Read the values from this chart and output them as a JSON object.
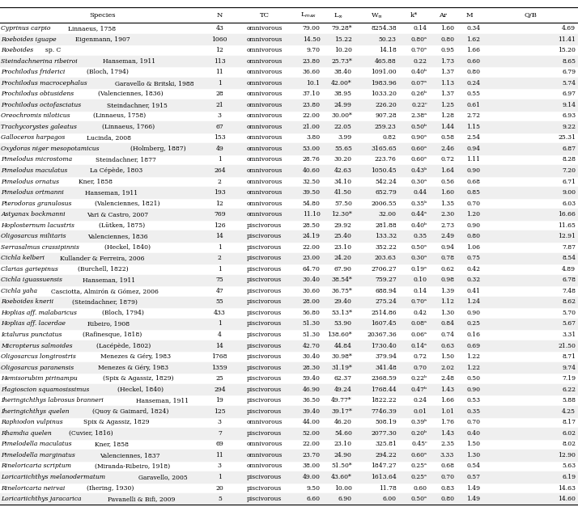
{
  "rows": [
    [
      "Cyprinus carpio",
      "Linnaeus, 1758",
      "43",
      "omnivorous",
      "79.00",
      "79.28*",
      "8254.38",
      "0.14",
      "1.60",
      "0.34",
      "4.69"
    ],
    [
      "Roeboides iguape",
      "Eigenmann, 1907",
      "1060",
      "omnivorous",
      "14.50",
      "15.22",
      "50.23",
      "0.80ᵃ",
      "0.80",
      "1.62",
      "11.41"
    ],
    [
      "Roeboides",
      "sp. C",
      "12",
      "omnivorous",
      "9.70",
      "10.20",
      "14.18",
      "0.70ᵃ",
      "0.95",
      "1.66",
      "15.20"
    ],
    [
      "Steindachnerina ribeiroi",
      "Hanseman, 1911",
      "113",
      "omnivorous",
      "23.80",
      "25.73*",
      "465.88",
      "0.22",
      "1.73",
      "0.60",
      "8.65"
    ],
    [
      "Prochilodus friderici",
      "(Bloch, 1794)",
      "11",
      "omnivorous",
      "36.60",
      "38.40",
      "1091.00",
      "0.40ᵇ",
      "1.37",
      "0.80",
      "6.79"
    ],
    [
      "Prochilodus macrocephalus",
      "Garavello & Britski, 1988",
      "1",
      "omnivorous",
      "10.1",
      "42.00*",
      "1983.96",
      "0.07ᵃ",
      "1.13",
      "0.24",
      "5.74"
    ],
    [
      "Prochilodus obtusidens",
      "(Valenciennes, 1836)",
      "28",
      "omnivorous",
      "37.10",
      "38.95",
      "1033.20",
      "0.26ᵇ",
      "1.37",
      "0.55",
      "6.97"
    ],
    [
      "Prochilodus octofasciatus",
      "Steindachner, 1915",
      "21",
      "omnivorous",
      "23.80",
      "24.99",
      "226.20",
      "0.22ᶜ",
      "1.25",
      "0.61",
      "9.14"
    ],
    [
      "Oreochromis niloticus",
      "(Linnaeus, 1758)",
      "3",
      "omnivorous",
      "22.00",
      "30.00*",
      "907.28",
      "2.38ᵃ",
      "1.28",
      "2.72",
      "6.93"
    ],
    [
      "Trachycorystes galeatus",
      "(Linnaeus, 1766)",
      "67",
      "omnivorous",
      "21.00",
      "22.05",
      "259.23",
      "0.50ᵇ",
      "1.44",
      "1.15",
      "9.22"
    ],
    [
      "Galloceros harpagos",
      "Lucinda, 2008",
      "153",
      "omnivorous",
      "3.80",
      "3.99",
      "0.82",
      "0.90ᵃ",
      "0.58",
      "2.54",
      "25.31"
    ],
    [
      "Oxydoras niger mesopotamicus",
      "(Holmberg, 1887)",
      "49",
      "omnivorous",
      "53.00",
      "55.65",
      "3165.65",
      "0.60ᵃ",
      "2.46",
      "0.94",
      "6.87"
    ],
    [
      "Pimelodus microstoma",
      "Steindachner, 1877",
      "1",
      "omnivorous",
      "28.76",
      "30.20",
      "223.76",
      "0.60ᵃ",
      "0.72",
      "1.11",
      "8.28"
    ],
    [
      "Pimelodus maculatus",
      "La Cépède, 1803",
      "264",
      "omnivorous",
      "40.60",
      "42.63",
      "1050.45",
      "0.43ᵇ",
      "1.64",
      "0.90",
      "7.20"
    ],
    [
      "Pimelodus ornatus",
      "Kner, 1858",
      "2",
      "omnivorous",
      "32.50",
      "34.10",
      "542.24",
      "0.30ᵃ",
      "0.56",
      "0.68",
      "6.71"
    ],
    [
      "Pimelodus ortmanni",
      "Hanseman, 1911",
      "193",
      "omnivorous",
      "39.50",
      "41.50",
      "652.79",
      "0.44",
      "1.60",
      "0.85",
      "9.00"
    ],
    [
      "Pterodoras granulosus",
      "(Valenciennes, 1821)",
      "12",
      "omnivorous",
      "54.80",
      "57.50",
      "2006.55",
      "0.35ᵇ",
      "1.35",
      "0.70",
      "6.03"
    ],
    [
      "Astyanax bockmanni",
      "Vari & Castro, 2007",
      "769",
      "omnivorous",
      "11.10",
      "12.30*",
      "32.00",
      "0.44ᵃ",
      "2.30",
      "1.20",
      "16.66"
    ],
    [
      "Hoplosternum lacustris",
      "(Lütken, 1875)",
      "126",
      "piscivorous",
      "28.50",
      "29.92",
      "281.88",
      "0.40ᵇ",
      "2.73",
      "0.90",
      "11.65"
    ],
    [
      "Oligosarcus militaris",
      "Valenciennes, 1836",
      "14",
      "piscivorous",
      "24.19",
      "25.40",
      "133.32",
      "0.35",
      "2.49",
      "0.80",
      "12.91"
    ],
    [
      "Serrasalmus crassipinnis",
      "(Heckel, 1840)",
      "1",
      "piscivorous",
      "22.00",
      "23.10",
      "352.22",
      "0.50ᵃ",
      "0.94",
      "1.06",
      "7.87"
    ],
    [
      "Cichla kelberi",
      "Kullander & Ferreira, 2006",
      "2",
      "piscivorous",
      "23.00",
      "24.20",
      "203.63",
      "0.30ᵃ",
      "0.78",
      "0.75",
      "8.54"
    ],
    [
      "Clarias gariepinus",
      "(Burchell, 1822)",
      "1",
      "piscivorous",
      "64.70",
      "67.90",
      "2706.27",
      "0.19ᵃ",
      "0.62",
      "0.42",
      "4.89"
    ],
    [
      "Cichla iguassuensis",
      "Hanseman, 1911",
      "75",
      "piscivorous",
      "30.40",
      "38.54*",
      "759.27",
      "0.10",
      "0.98",
      "0.32",
      "6.78"
    ],
    [
      "Cichla yaha",
      "Casciotta, Almirón & Gómez, 2006",
      "47",
      "piscivorous",
      "30.60",
      "36.75*",
      "688.94",
      "0.14",
      "1.39",
      "0.41",
      "7.48"
    ],
    [
      "Roeboides knerii",
      "(Steindachner, 1879)",
      "55",
      "piscivorous",
      "28.00",
      "29.40",
      "275.24",
      "0.70ᵃ",
      "1.12",
      "1.24",
      "8.62"
    ],
    [
      "Hoplias aff. malabaricus",
      "(Bloch, 1794)",
      "433",
      "piscivorous",
      "56.80",
      "53.13*",
      "2514.86",
      "0.42",
      "1.30",
      "0.90",
      "5.70"
    ],
    [
      "Hoplias aff. lacerdae",
      "Ribeiro, 1908",
      "1",
      "piscivorous",
      "51.30",
      "53.90",
      "1607.45",
      "0.08ᵃ",
      "0.84",
      "0.25",
      "5.67"
    ],
    [
      "Ictalurus punctatus",
      "(Rafinesque, 1818)",
      "4",
      "piscivorous",
      "51.30",
      "138.60*",
      "20367.36",
      "0.06ᵃ",
      "0.74",
      "0.16",
      "3.31"
    ],
    [
      "Micropterus salmoides",
      "(Lacépède, 1802)",
      "14",
      "piscivorous",
      "42.70",
      "44.84",
      "1730.40",
      "0.14ᵃ",
      "0.63",
      "0.69",
      "21.50"
    ],
    [
      "Oligosarcus longirostris",
      "Menezes & Géry, 1983",
      "1768",
      "piscivorous",
      "30.40",
      "30.98*",
      "379.94",
      "0.72",
      "1.50",
      "1.22",
      "8.71"
    ],
    [
      "Oligosarcus paranensis",
      "Menezes & Géry, 1983",
      "1359",
      "piscivorous",
      "28.30",
      "31.19*",
      "341.48",
      "0.70",
      "2.02",
      "1.22",
      "9.74"
    ],
    [
      "Hemisorubim pirinampu",
      "(Spix & Agassiz, 1829)",
      "25",
      "piscivorous",
      "59.40",
      "62.37",
      "2368.59",
      "0.22ᵇ",
      "2.48",
      "0.50",
      "7.19"
    ],
    [
      "Plagioscion squamosissimus",
      "(Heckel, 1840)",
      "294",
      "piscivorous",
      "46.90",
      "49.24",
      "1768.44",
      "0.47ᵇ",
      "1.43",
      "0.90",
      "6.22"
    ],
    [
      "Iheringichthys labrosus branneri",
      "Hanseman, 1911",
      "19",
      "piscivorous",
      "36.50",
      "49.77*",
      "1822.22",
      "0.24",
      "1.66",
      "0.53",
      "5.88"
    ],
    [
      "Iheringichthys quelen",
      "(Quoy & Gaimard, 1824)",
      "125",
      "piscivorous",
      "39.40",
      "39.17*",
      "7746.39",
      "0.01",
      "1.01",
      "0.35",
      "4.25"
    ],
    [
      "Raphiodon vulpinus",
      "Spix & Agassiz, 1829",
      "3",
      "omnivorous",
      "44.00",
      "46.20",
      "508.19",
      "0.39ᵇ",
      "1.76",
      "0.70",
      "8.17"
    ],
    [
      "Rhamdia quelen",
      "(Cuvier, 1816)",
      "7",
      "piscivorous",
      "52.00",
      "54.60",
      "2077.30",
      "0.20ᵇ",
      "1.43",
      "0.40",
      "6.02"
    ],
    [
      "Pimelodella maculatus",
      "Kner, 1858",
      "69",
      "omnivorous",
      "22.00",
      "23.10",
      "325.81",
      "0.45ᶜ",
      "2.35",
      "1.50",
      "8.02"
    ],
    [
      "Pimelodella marginatus",
      "Valenciennes, 1837",
      "11",
      "omnivorous",
      "23.70",
      "24.90",
      "294.22",
      "0.60ᵃ",
      "3.33",
      "1.30",
      "12.90"
    ],
    [
      "Rineloricaria scriptum",
      "(Miranda-Ribeiro, 1918)",
      "3",
      "omnivorous",
      "38.00",
      "51.50*",
      "1847.27",
      "0.25ᵃ",
      "0.68",
      "0.54",
      "5.63"
    ],
    [
      "Loricariichthys melanodermatum",
      "Garavello, 2005",
      "1",
      "piscivorous",
      "49.00",
      "43.60*",
      "1613.64",
      "0.25ᵃ",
      "0.70",
      "0.57",
      "6.19"
    ],
    [
      "Rineloricaria neirvai",
      "(Ihering, 1930)",
      "20",
      "piscivorous",
      "9.50",
      "10.00",
      "11.78",
      "0.60",
      "0.83",
      "1.49",
      "14.63"
    ],
    [
      "Loricariichthys jaracarica",
      "Pavanelli & Bifi, 2009",
      "5",
      "piscivorous",
      "6.60",
      "6.90",
      "6.00",
      "0.50ᵃ",
      "0.80",
      "1.49",
      "14.60"
    ]
  ],
  "font_size": 5.5,
  "header_font_size": 6.0,
  "bg_color": "#ffffff",
  "alt_row_color": "#efefef"
}
